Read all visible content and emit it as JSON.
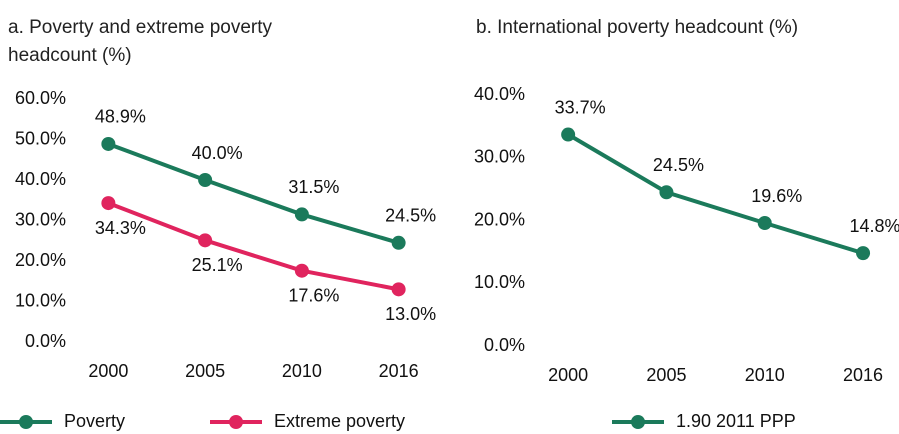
{
  "chart_data": [
    {
      "type": "line",
      "title": "a. Poverty and extreme poverty headcount (%)",
      "categories": [
        "2000",
        "2005",
        "2010",
        "2016"
      ],
      "series": [
        {
          "name": "Poverty",
          "color": "#1b7a5b",
          "values": [
            48.9,
            40.0,
            31.5,
            24.5
          ],
          "value_labels": [
            "48.9%",
            "40.0%",
            "31.5%",
            "24.5%"
          ],
          "label_position": "above"
        },
        {
          "name": "Extreme poverty",
          "color": "#e0245e",
          "values": [
            34.3,
            25.1,
            17.6,
            13.0
          ],
          "value_labels": [
            "34.3%",
            "25.1%",
            "17.6%",
            "13.0%"
          ],
          "label_position": "below"
        }
      ],
      "ylim": [
        0,
        60
      ],
      "yticks": [
        {
          "value": 0,
          "label": "0.0%"
        },
        {
          "value": 10,
          "label": "10.0%"
        },
        {
          "value": 20,
          "label": "20.0%"
        },
        {
          "value": 30,
          "label": "30.0%"
        },
        {
          "value": 40,
          "label": "40.0%"
        },
        {
          "value": 50,
          "label": "50.0%"
        },
        {
          "value": 60,
          "label": "60.0%"
        }
      ],
      "grid": false,
      "legend": "bottom"
    },
    {
      "type": "line",
      "title": "b. International poverty headcount (%)",
      "categories": [
        "2000",
        "2005",
        "2010",
        "2016"
      ],
      "series": [
        {
          "name": "1.90 2011 PPP",
          "color": "#1b7a5b",
          "values": [
            33.7,
            24.5,
            19.6,
            14.8
          ],
          "value_labels": [
            "33.7%",
            "24.5%",
            "19.6%",
            "14.8%"
          ],
          "label_position": "above"
        }
      ],
      "ylim": [
        0,
        40
      ],
      "yticks": [
        {
          "value": 0,
          "label": "0.0%"
        },
        {
          "value": 10,
          "label": "10.0%"
        },
        {
          "value": 20,
          "label": "20.0%"
        },
        {
          "value": 30,
          "label": "30.0%"
        },
        {
          "value": 40,
          "label": "40.0%"
        }
      ],
      "grid": false,
      "legend": "bottom"
    }
  ]
}
